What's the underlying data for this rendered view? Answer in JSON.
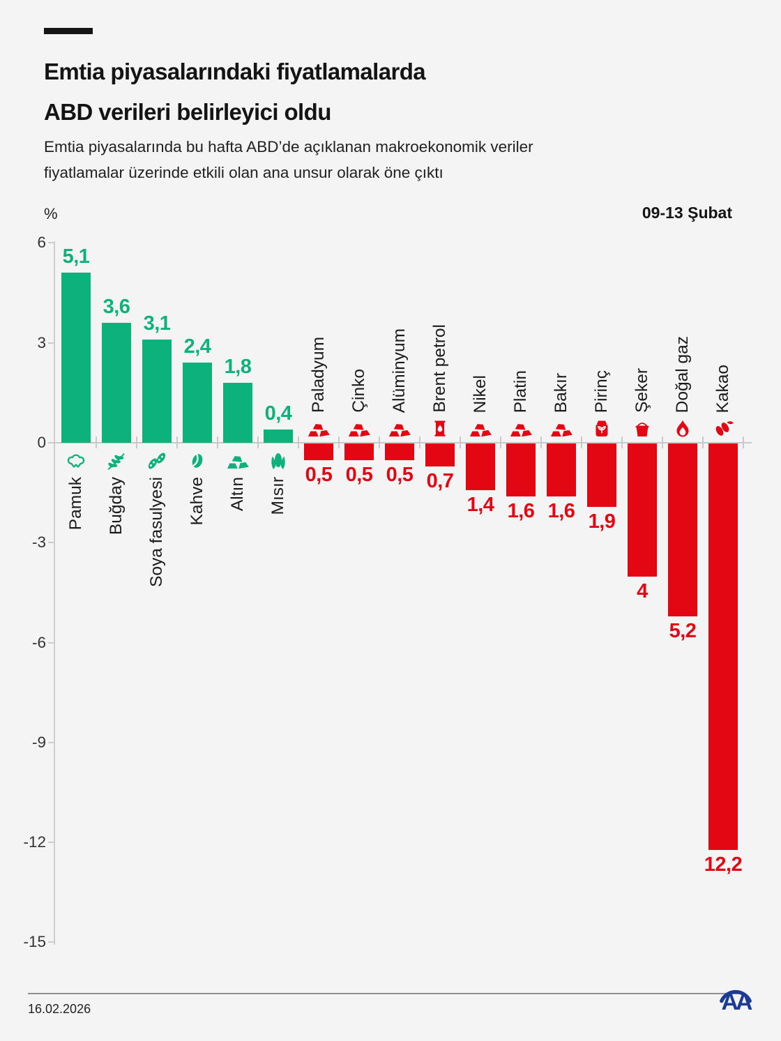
{
  "header": {
    "title_lines": [
      "Emtia piyasalarındaki fiyatlamalarda",
      "ABD verileri belirleyici oldu"
    ],
    "subtitle_lines": [
      "Emtia piyasalarında bu hafta ABD’de açıklanan makroekonomik veriler",
      "fiyatlamalar üzerinde etkili olan ana unsur olarak öne çıktı"
    ]
  },
  "chart": {
    "unit_label": "%",
    "period_label": "09-13 Şubat"
  },
  "chart_data": {
    "type": "bar",
    "title": "Emtia piyasalarındaki fiyatlamalarda ABD verileri belirleyici oldu",
    "period": "09-13 Şubat",
    "ylabel": "%",
    "ylim": [
      -15,
      6
    ],
    "yticks": [
      6,
      3,
      0,
      -3,
      -6,
      -9,
      -12,
      -15
    ],
    "grid": false,
    "value_format": "decimal-comma",
    "colors": {
      "positive": "#0db17c",
      "negative": "#e30613"
    },
    "bars": [
      {
        "label": "Pamuk",
        "value": 5.1,
        "display": "5,1",
        "icon": "cotton-icon"
      },
      {
        "label": "Buğday",
        "value": 3.6,
        "display": "3,6",
        "icon": "wheat-icon"
      },
      {
        "label": "Soya fasulyesi",
        "value": 3.1,
        "display": "3,1",
        "icon": "soybean-icon"
      },
      {
        "label": "Kahve",
        "value": 2.4,
        "display": "2,4",
        "icon": "coffee-bean-icon"
      },
      {
        "label": "Altın",
        "value": 1.8,
        "display": "1,8",
        "icon": "gold-ingots-icon"
      },
      {
        "label": "Mısır",
        "value": 0.4,
        "display": "0,4",
        "icon": "corn-icon"
      },
      {
        "label": "Paladyum",
        "value": -0.5,
        "display": "0,5",
        "icon": "metal-ingots-icon"
      },
      {
        "label": "Çinko",
        "value": -0.5,
        "display": "0,5",
        "icon": "metal-ingots-icon"
      },
      {
        "label": "Alüminyum",
        "value": -0.5,
        "display": "0,5",
        "icon": "metal-ingots-icon"
      },
      {
        "label": "Brent petrol",
        "value": -0.7,
        "display": "0,7",
        "icon": "oil-barrel-icon"
      },
      {
        "label": "Nikel",
        "value": -1.4,
        "display": "1,4",
        "icon": "metal-ingots-icon"
      },
      {
        "label": "Platin",
        "value": -1.6,
        "display": "1,6",
        "icon": "metal-ingots-icon"
      },
      {
        "label": "Bakır",
        "value": -1.6,
        "display": "1,6",
        "icon": "metal-ingots-icon"
      },
      {
        "label": "Pirinç",
        "value": -1.9,
        "display": "1,9",
        "icon": "rice-sack-icon"
      },
      {
        "label": "Şeker",
        "value": -4,
        "display": "4",
        "icon": "sugar-sack-icon"
      },
      {
        "label": "Doğal gaz",
        "value": -5.2,
        "display": "5,2",
        "icon": "flame-icon"
      },
      {
        "label": "Kakao",
        "value": -12.2,
        "display": "12,2",
        "icon": "cocoa-icon"
      }
    ]
  },
  "footer": {
    "date": "16.02.2026",
    "logo_text": "AA",
    "logo_color": "#1c3c94"
  }
}
